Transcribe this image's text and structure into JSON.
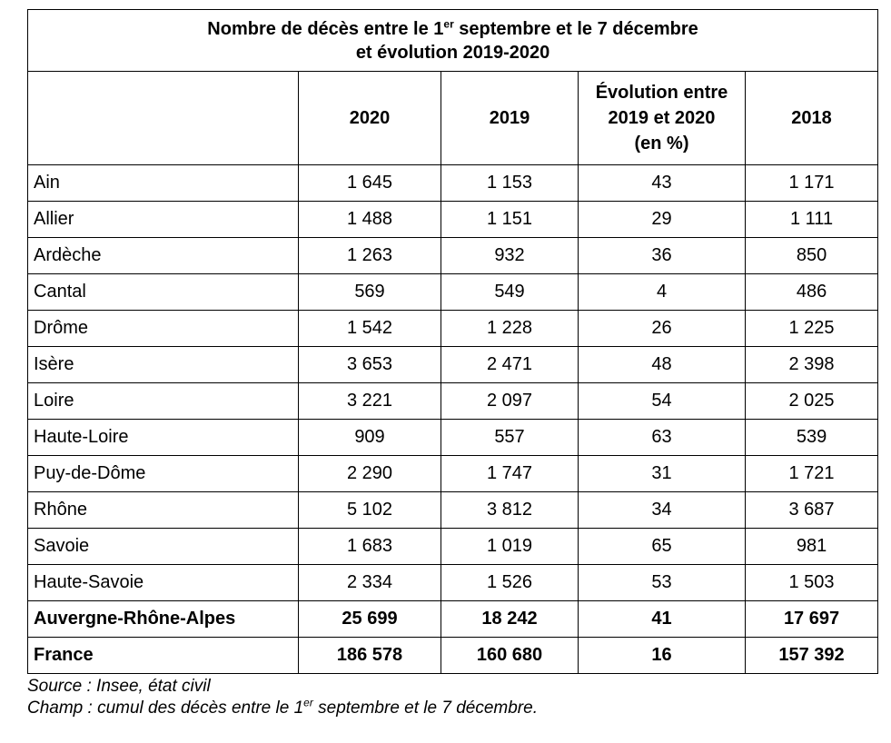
{
  "table": {
    "title_line1_pre": "Nombre de décès entre le 1",
    "title_line1_sup": "er",
    "title_line1_post": " septembre et le 7 décembre",
    "title_line2": "et évolution 2019-2020",
    "headers": [
      "",
      "2020",
      "2019",
      "Évolution entre\n2019 et 2020\n(en %)",
      "2018"
    ],
    "header_evol_lines": [
      "Évolution entre",
      "2019 et 2020",
      "(en %)"
    ],
    "rows": [
      [
        "Ain",
        "1 645",
        "1 153",
        "43",
        "1 171"
      ],
      [
        "Allier",
        "1 488",
        "1 151",
        "29",
        "1 111"
      ],
      [
        "Ardèche",
        "1 263",
        "932",
        "36",
        "850"
      ],
      [
        "Cantal",
        "569",
        "549",
        "4",
        "486"
      ],
      [
        "Drôme",
        "1 542",
        "1 228",
        "26",
        "1 225"
      ],
      [
        "Isère",
        "3 653",
        "2 471",
        "48",
        "2 398"
      ],
      [
        "Loire",
        "3 221",
        "2 097",
        "54",
        "2 025"
      ],
      [
        "Haute-Loire",
        "909",
        "557",
        "63",
        "539"
      ],
      [
        "Puy-de-Dôme",
        "2 290",
        "1 747",
        "31",
        "1 721"
      ],
      [
        "Rhône",
        "5 102",
        "3 812",
        "34",
        "3 687"
      ],
      [
        "Savoie",
        "1 683",
        "1 019",
        "65",
        "981"
      ],
      [
        "Haute-Savoie",
        "2 334",
        "1 526",
        "53",
        "1 503"
      ]
    ],
    "totals": [
      [
        "Auvergne-Rhône-Alpes",
        "25 699",
        "18 242",
        "41",
        "17 697"
      ],
      [
        "France",
        "186 578",
        "160 680",
        "16",
        "157 392"
      ]
    ]
  },
  "notes": {
    "source": "Source  : Insee, état civil",
    "champ_pre": "Champ  : cumul des décès entre le 1",
    "champ_sup": "er",
    "champ_post": " septembre et le 7 décembre."
  }
}
